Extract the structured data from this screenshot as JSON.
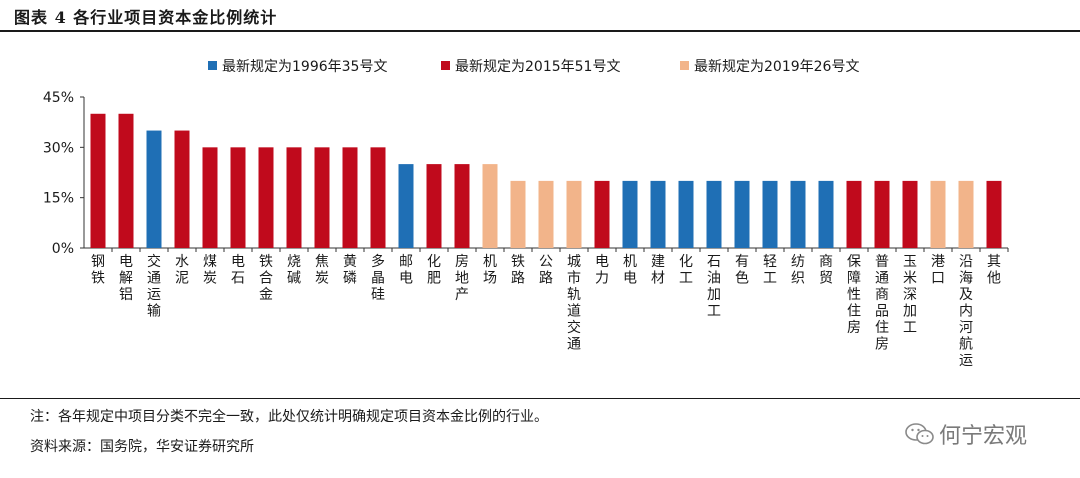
{
  "header": {
    "title": "图表 4  各行业项目资本金比例统计"
  },
  "chart_data": {
    "type": "bar",
    "title": "各行业项目资本金比例统计",
    "xlabel": "",
    "ylabel": "",
    "ylim": [
      0,
      45
    ],
    "yticks": [
      0,
      15,
      30,
      45
    ],
    "ytick_labels": [
      "0%",
      "15%",
      "30%",
      "45%"
    ],
    "grid": false,
    "legend_position": "top",
    "series_legend": [
      {
        "name": "最新规定为1996年35号文",
        "color": "#1f6fb5"
      },
      {
        "name": "最新规定为2015年51号文",
        "color": "#c00a1c"
      },
      {
        "name": "最新规定为2019年26号文",
        "color": "#f2b48a"
      }
    ],
    "categories": [
      "钢铁",
      "电解铝",
      "交通运输",
      "水泥",
      "煤炭",
      "电石",
      "铁合金",
      "烧碱",
      "焦炭",
      "黄磷",
      "多晶硅",
      "邮电",
      "化肥",
      "房地产",
      "机场",
      "铁路",
      "公路",
      "城市轨道交通",
      "电力",
      "机电",
      "建材",
      "化工",
      "石油加工",
      "有色",
      "轻工",
      "纺织",
      "商贸",
      "保障性住房",
      "普通商品住房",
      "玉米深加工",
      "港口",
      "沿海及内河航运",
      "其他"
    ],
    "values": [
      40,
      40,
      35,
      35,
      30,
      30,
      30,
      30,
      30,
      30,
      30,
      25,
      25,
      25,
      25,
      20,
      20,
      20,
      20,
      20,
      20,
      20,
      20,
      20,
      20,
      20,
      20,
      20,
      20,
      20,
      20,
      20,
      20
    ],
    "series_index": [
      1,
      1,
      0,
      1,
      1,
      1,
      1,
      1,
      1,
      1,
      1,
      0,
      1,
      1,
      2,
      2,
      2,
      2,
      1,
      0,
      0,
      0,
      0,
      0,
      0,
      0,
      0,
      1,
      1,
      1,
      2,
      2,
      1
    ]
  },
  "notes": {
    "note": "注：各年规定中项目分类不完全一致，此处仅统计明确规定项目资本金比例的行业。",
    "source": "资料来源：国务院，华安证券研究所"
  },
  "watermark": {
    "text": "何宁宏观",
    "icon": "wechat-icon"
  }
}
